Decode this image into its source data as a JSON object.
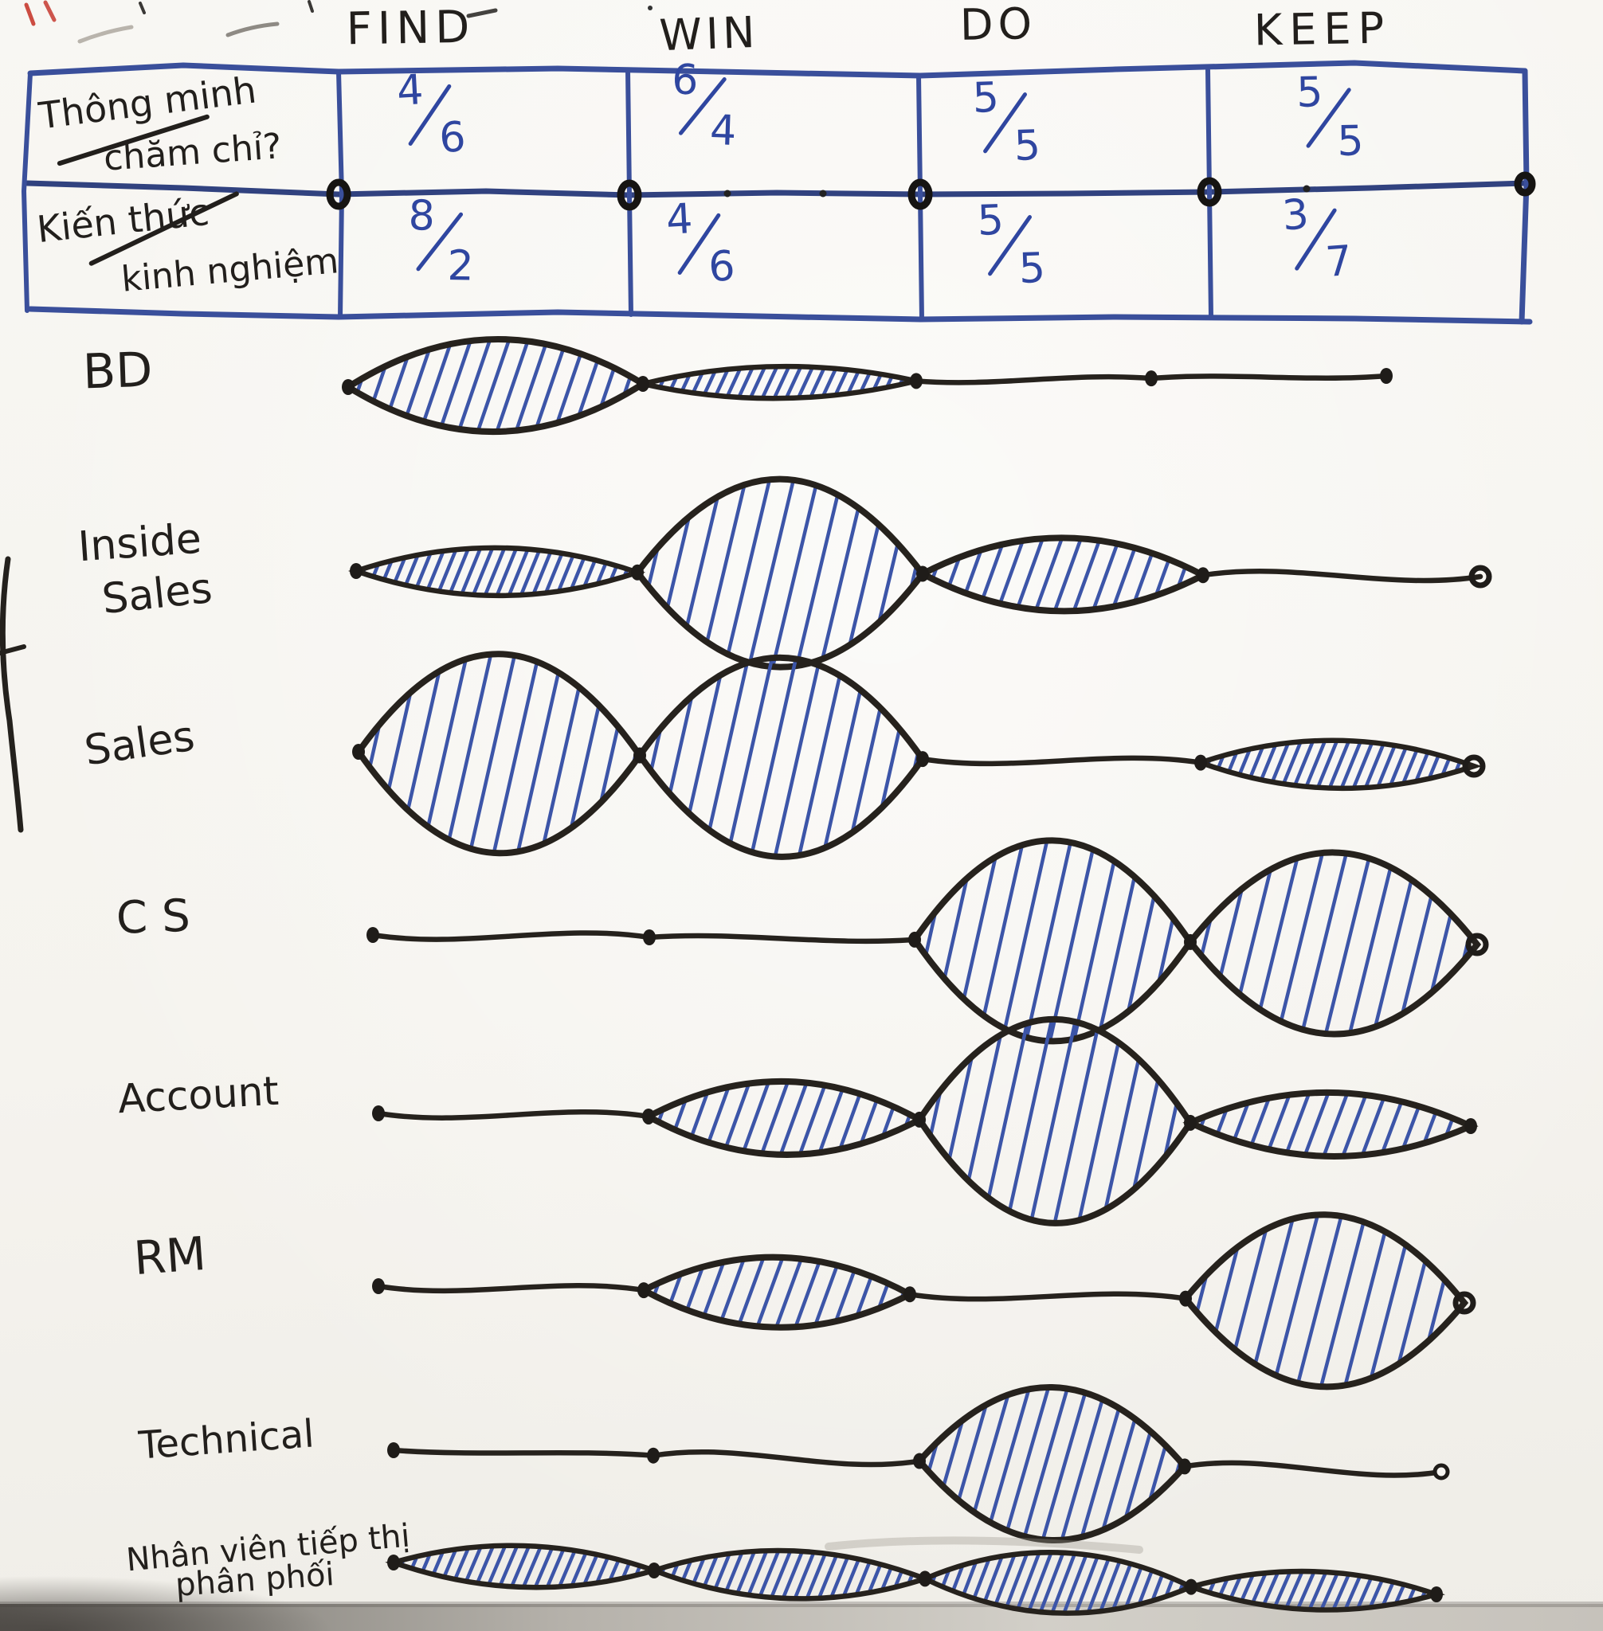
{
  "phases": [
    "FIND",
    "WIN",
    "DO",
    "KEEP"
  ],
  "criteria_table": {
    "row_labels": [
      {
        "line1": "Thông minh",
        "line2": "chăm chỉ?"
      },
      {
        "line1": "Kiến thức",
        "line2": "kinh nghiệm"
      }
    ],
    "rows": [
      {
        "values": [
          "4/6",
          "6/4",
          "5/5",
          "5/5"
        ]
      },
      {
        "values": [
          "8/2",
          "4/6",
          "5/5",
          "3/7"
        ]
      }
    ]
  },
  "roles": [
    {
      "label_lines": [
        "BD"
      ],
      "emphasis": [
        "large",
        "thin",
        "none",
        "none"
      ]
    },
    {
      "label_lines": [
        "Inside",
        "Sales"
      ],
      "emphasis": [
        "thin",
        "xlarge",
        "medium",
        "none"
      ]
    },
    {
      "label_lines": [
        "Sales"
      ],
      "emphasis": [
        "xlarge",
        "xlarge",
        "none",
        "thin"
      ]
    },
    {
      "label_lines": [
        "CS"
      ],
      "emphasis": [
        "none",
        "none",
        "xlarge",
        "xlarge"
      ]
    },
    {
      "label_lines": [
        "Account"
      ],
      "emphasis": [
        "none",
        "medium",
        "xlarge",
        "medium"
      ]
    },
    {
      "label_lines": [
        "RM"
      ],
      "emphasis": [
        "none",
        "medium",
        "none",
        "xlarge"
      ]
    },
    {
      "label_lines": [
        "Technical"
      ],
      "emphasis": [
        "none",
        "none",
        "large",
        "none"
      ]
    },
    {
      "label_lines": [
        "Nhân viên tiếp thị",
        "phân phối"
      ],
      "emphasis": [
        "thin",
        "thin",
        "thin",
        "thin"
      ]
    }
  ],
  "colors": {
    "board": "#f7f5f1",
    "ink_black": "#221f1c",
    "ink_blue": "#2f46a0",
    "hatch_blue": "#3c55a8",
    "grid_blue": "#3a4f9b",
    "stray_red": "#c6382e"
  }
}
